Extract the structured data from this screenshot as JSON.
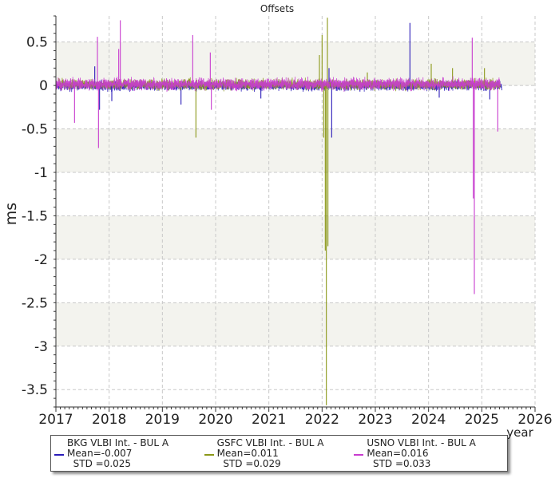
{
  "chart_data": {
    "type": "line",
    "title": "Offsets",
    "xlabel": "year",
    "ylabel": "ms",
    "xlim": [
      2017,
      2026
    ],
    "ylim": [
      -3.7,
      0.8
    ],
    "x_ticks": [
      2017,
      2018,
      2019,
      2020,
      2021,
      2022,
      2023,
      2024,
      2025,
      2026
    ],
    "y_ticks": [
      0.5,
      0,
      -0.5,
      -1,
      -1.5,
      -2,
      -2.5,
      -3,
      -3.5
    ],
    "y_tick_labels": [
      "0.5",
      "0",
      "-0.5",
      "-1",
      "-1.5",
      "-2",
      "-2.5",
      "-3",
      "-3.5"
    ],
    "grid": true,
    "alternating_bands": true,
    "legend_position": "bottom",
    "series": [
      {
        "name": "BKG VLBI Int. - BUL A",
        "color": "#2a1bb8",
        "mean_label": "Mean=-0.007",
        "std_label": "STD =0.025",
        "x_start": 2017.0,
        "x_end": 2025.38,
        "baseline": -0.007,
        "noise": 0.025,
        "spikes": [
          {
            "x": 2017.73,
            "y": 0.22
          },
          {
            "x": 2017.82,
            "y": -0.28
          },
          {
            "x": 2018.05,
            "y": -0.18
          },
          {
            "x": 2019.35,
            "y": -0.22
          },
          {
            "x": 2020.85,
            "y": -0.15
          },
          {
            "x": 2022.13,
            "y": 0.2
          },
          {
            "x": 2022.18,
            "y": -0.6
          },
          {
            "x": 2023.65,
            "y": 0.72
          },
          {
            "x": 2024.2,
            "y": -0.14
          },
          {
            "x": 2025.15,
            "y": -0.16
          }
        ]
      },
      {
        "name": "GSFC VLBI Int. - BUL A",
        "color": "#8b9818",
        "mean_label": "Mean=0.011",
        "std_label": "STD =0.029",
        "x_start": 2017.05,
        "x_end": 2025.35,
        "baseline": 0.011,
        "noise": 0.029,
        "spikes": [
          {
            "x": 2019.63,
            "y": -0.6
          },
          {
            "x": 2021.95,
            "y": 0.35
          },
          {
            "x": 2022.0,
            "y": 0.58
          },
          {
            "x": 2022.03,
            "y": -0.6
          },
          {
            "x": 2022.06,
            "y": -1.9
          },
          {
            "x": 2022.08,
            "y": -3.68
          },
          {
            "x": 2022.11,
            "y": -1.85
          },
          {
            "x": 2022.1,
            "y": 0.78
          },
          {
            "x": 2022.85,
            "y": 0.15
          },
          {
            "x": 2024.05,
            "y": 0.25
          },
          {
            "x": 2024.45,
            "y": 0.2
          },
          {
            "x": 2025.05,
            "y": 0.2
          }
        ]
      },
      {
        "name": "USNO VLBI Int. - BUL A",
        "color": "#c83ccf",
        "mean_label": "Mean=0.016",
        "std_label": "STD =0.033",
        "x_start": 2017.0,
        "x_end": 2025.35,
        "baseline": 0.016,
        "noise": 0.033,
        "spikes": [
          {
            "x": 2017.35,
            "y": -0.43
          },
          {
            "x": 2017.78,
            "y": 0.56
          },
          {
            "x": 2017.8,
            "y": -0.72
          },
          {
            "x": 2018.18,
            "y": 0.42
          },
          {
            "x": 2018.21,
            "y": 0.75
          },
          {
            "x": 2019.57,
            "y": 0.58
          },
          {
            "x": 2019.9,
            "y": 0.38
          },
          {
            "x": 2019.92,
            "y": -0.28
          },
          {
            "x": 2024.82,
            "y": 0.55
          },
          {
            "x": 2024.84,
            "y": -1.3
          },
          {
            "x": 2024.86,
            "y": -2.4
          },
          {
            "x": 2025.3,
            "y": -0.53
          }
        ]
      }
    ]
  }
}
